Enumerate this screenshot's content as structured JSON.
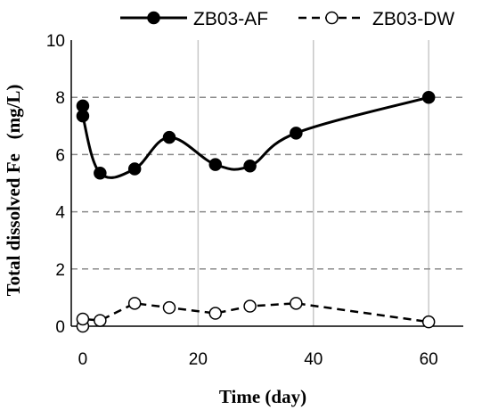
{
  "chart_data": {
    "type": "line",
    "xlabel": "Time (day)",
    "ylabel": "Total dissolved Fe   (mg/L)",
    "xlim": [
      -2,
      66
    ],
    "ylim": [
      0,
      10
    ],
    "x_ticks": [
      0,
      20,
      40,
      60
    ],
    "y_ticks": [
      0,
      2,
      4,
      6,
      8,
      10
    ],
    "grid": {
      "vertical": true,
      "horizontal": "dashed"
    },
    "legend_position": "top",
    "series": [
      {
        "name": "ZB03-AF",
        "style": "solid",
        "marker": "filled-circle",
        "color": "#000000",
        "x": [
          0,
          0,
          3,
          9,
          15,
          23,
          29,
          37,
          60
        ],
        "y": [
          7.7,
          7.35,
          5.35,
          5.5,
          6.6,
          5.65,
          5.6,
          6.75,
          8.0
        ]
      },
      {
        "name": "ZB03-DW",
        "style": "dashed",
        "marker": "open-circle",
        "color": "#000000",
        "x": [
          0,
          0,
          3,
          9,
          15,
          23,
          29,
          37,
          60
        ],
        "y": [
          0.0,
          0.25,
          0.2,
          0.8,
          0.65,
          0.45,
          0.7,
          0.8,
          0.15
        ]
      }
    ]
  }
}
